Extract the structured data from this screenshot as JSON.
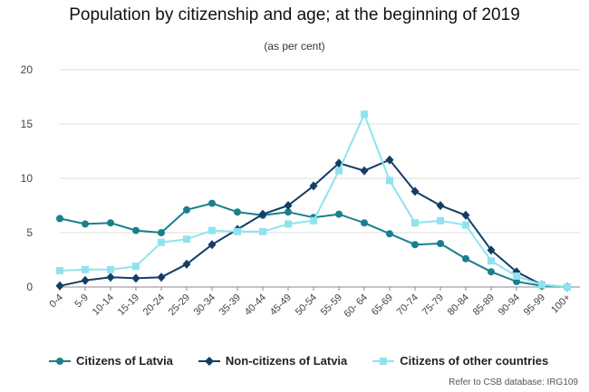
{
  "title": "Population by citizenship and age; at the beginning of 2019",
  "subtitle": "(as per cent)",
  "source": "Refer to CSB database: IRG109",
  "colors": {
    "grid": "#dddddd",
    "axis": "#888888",
    "tick_text": "#444444"
  },
  "chart_data": {
    "type": "line",
    "categories": [
      "0-4",
      "5-9",
      "10-14",
      "15-19",
      "20-24",
      "25-29",
      "30-34",
      "35-39",
      "40-44",
      "45-49",
      "50-54",
      "55-59",
      "60- 64",
      "65-69",
      "70-74",
      "75-79",
      "80-84",
      "85-89",
      "90-94",
      "95-99",
      "100+"
    ],
    "ylim": [
      0,
      20
    ],
    "yticks": [
      0,
      5,
      10,
      15,
      20
    ],
    "grid": true,
    "legend_position": "bottom",
    "series": [
      {
        "name": "Citizens of Latvia",
        "color": "#1b7f8c",
        "marker": "circle",
        "values": [
          6.3,
          5.8,
          5.9,
          5.2,
          5.0,
          7.1,
          7.7,
          6.9,
          6.6,
          6.9,
          6.4,
          6.7,
          5.9,
          4.9,
          3.9,
          4.0,
          2.6,
          1.4,
          0.5,
          0.1,
          0.0
        ]
      },
      {
        "name": "Non-citizens of Latvia",
        "color": "#143d66",
        "marker": "diamond",
        "values": [
          0.1,
          0.6,
          0.9,
          0.8,
          0.9,
          2.1,
          3.9,
          5.3,
          6.7,
          7.5,
          9.3,
          11.4,
          10.7,
          11.7,
          8.8,
          7.5,
          6.6,
          3.4,
          1.4,
          0.2,
          0.0
        ]
      },
      {
        "name": "Citizens of other countries",
        "color": "#8fe3ee",
        "marker": "square",
        "values": [
          1.5,
          1.6,
          1.6,
          1.9,
          4.1,
          4.4,
          5.2,
          5.1,
          5.1,
          5.8,
          6.1,
          10.7,
          15.9,
          9.8,
          5.9,
          6.1,
          5.7,
          2.4,
          1.0,
          0.2,
          0.0
        ]
      }
    ]
  }
}
